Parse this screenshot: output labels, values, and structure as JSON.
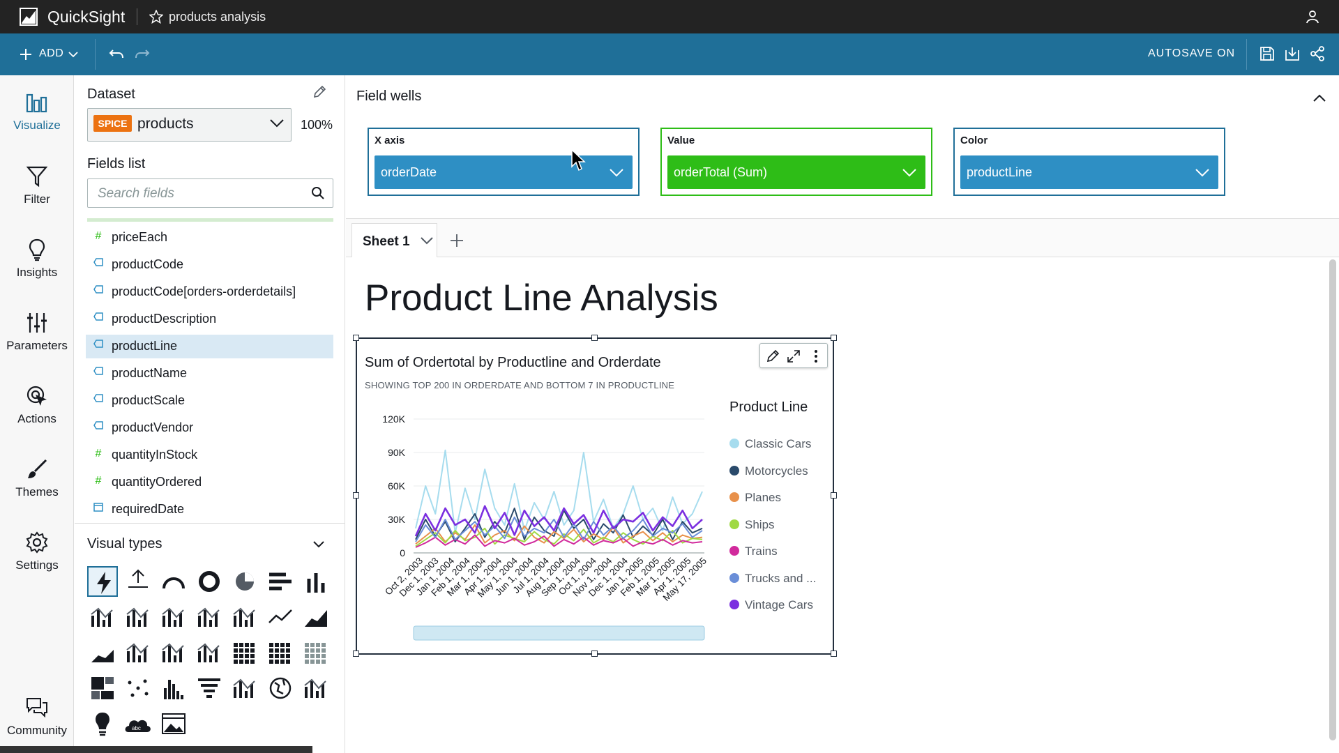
{
  "app": {
    "name": "QuickSight",
    "analysis_name": "products analysis"
  },
  "toolbar": {
    "add_label": "ADD",
    "autosave_label": "AUTOSAVE ON"
  },
  "nav": [
    {
      "label": "Visualize",
      "icon": "visualize-icon",
      "active": true
    },
    {
      "label": "Filter",
      "icon": "filter-icon"
    },
    {
      "label": "Insights",
      "icon": "lightbulb-icon"
    },
    {
      "label": "Parameters",
      "icon": "sliders-icon"
    },
    {
      "label": "Actions",
      "icon": "cursor-click-icon"
    },
    {
      "label": "Themes",
      "icon": "brush-icon"
    },
    {
      "label": "Settings",
      "icon": "gear-icon"
    },
    {
      "label": "Community",
      "icon": "chat-icon"
    }
  ],
  "dataset": {
    "title": "Dataset",
    "badge": "SPICE",
    "name": "products",
    "spice_percent": "100%"
  },
  "fields": {
    "title": "Fields list",
    "search_placeholder": "Search fields",
    "items": [
      {
        "label": "priceEach",
        "type": "measure"
      },
      {
        "label": "productCode",
        "type": "dimension"
      },
      {
        "label": "productCode[orders-orderdetails]",
        "type": "dimension"
      },
      {
        "label": "productDescription",
        "type": "dimension"
      },
      {
        "label": "productLine",
        "type": "dimension",
        "selected": true
      },
      {
        "label": "productName",
        "type": "dimension"
      },
      {
        "label": "productScale",
        "type": "dimension"
      },
      {
        "label": "productVendor",
        "type": "dimension"
      },
      {
        "label": "quantityInStock",
        "type": "measure"
      },
      {
        "label": "quantityOrdered",
        "type": "measure"
      },
      {
        "label": "requiredDate",
        "type": "date"
      }
    ]
  },
  "visual_types": {
    "title": "Visual types"
  },
  "field_wells": {
    "title": "Field wells",
    "x_axis": {
      "label": "X axis",
      "value": "orderDate",
      "color": "#2e8fc4"
    },
    "value": {
      "label": "Value",
      "value": "orderTotal (Sum)",
      "color": "#2ebd17"
    },
    "color": {
      "label": "Color",
      "value": "productLine",
      "color": "#2e8fc4"
    }
  },
  "sheet": {
    "tab_label": "Sheet 1"
  },
  "page_title": "Product Line Analysis",
  "visual": {
    "title": "Sum of Ordertotal by Productline and Orderdate",
    "subtitle": "SHOWING TOP 200 IN ORDERDATE AND BOTTOM 7 IN PRODUCTLINE",
    "legend_title": "Product Line"
  },
  "chart_data": {
    "type": "line",
    "title": "Sum of Ordertotal by Productline and Orderdate",
    "subtitle": "SHOWING TOP 200 IN ORDERDATE AND BOTTOM 7 IN PRODUCTLINE",
    "ylim": [
      0,
      120000
    ],
    "y_ticks": [
      0,
      30000,
      60000,
      90000,
      120000
    ],
    "y_tick_labels": [
      "0",
      "30K",
      "60K",
      "90K",
      "120K"
    ],
    "x_tick_labels": [
      "Oct 2, 2003",
      "Dec 1, 2003",
      "Jan 1, 2004",
      "Feb 1, 2004",
      "Mar 1, 2004",
      "Apr 1, 2004",
      "May 1, 2004",
      "Jun 1, 2004",
      "Jul 1, 2004",
      "Aug 1, 2004",
      "Sep 1, 2004",
      "Oct 1, 2004",
      "Nov 1, 2004",
      "Dec 1, 2004",
      "Jan 1, 2005",
      "Feb 1, 2005",
      "Mar 1, 2005",
      "Apr 1, 2005",
      "May 17, 2005"
    ],
    "legend_title": "Product Line",
    "legend_position": "right",
    "series": [
      {
        "name": "Classic Cars",
        "color": "#a6dcee",
        "values": [
          22000,
          60000,
          35000,
          92000,
          18000,
          58000,
          30000,
          75000,
          40000,
          25000,
          62000,
          20000,
          45000,
          30000,
          55000,
          25000,
          38000,
          90000,
          28000,
          48000,
          22000,
          35000,
          60000,
          30000,
          40000,
          20000,
          50000,
          26000,
          35000,
          55000
        ]
      },
      {
        "name": "Motorcycles",
        "color": "#2a4a6b",
        "values": [
          12000,
          30000,
          15000,
          28000,
          10000,
          22000,
          35000,
          14000,
          28000,
          18000,
          40000,
          12000,
          32000,
          20000,
          15000,
          38000,
          22000,
          30000,
          12000,
          26000,
          18000,
          34000,
          14000,
          24000,
          16000,
          30000,
          12000,
          28000,
          18000,
          22000
        ]
      },
      {
        "name": "Planes",
        "color": "#e8914b",
        "values": [
          8000,
          15000,
          22000,
          10000,
          18000,
          12000,
          25000,
          9000,
          16000,
          20000,
          11000,
          24000,
          14000,
          9000,
          19000,
          13000,
          21000,
          10000,
          17000,
          12000,
          23000,
          9000,
          15000,
          19000,
          11000,
          18000,
          10000,
          16000,
          13000,
          14000
        ]
      },
      {
        "name": "Ships",
        "color": "#a0d944",
        "values": [
          6000,
          12000,
          18000,
          9000,
          20000,
          11000,
          14000,
          22000,
          8000,
          16000,
          13000,
          10000,
          19000,
          12000,
          8000,
          17000,
          11000,
          21000,
          9000,
          14000,
          10000,
          18000,
          12000,
          8000,
          15000,
          11000,
          20000,
          9000,
          13000,
          12000
        ]
      },
      {
        "name": "Trains",
        "color": "#d12a9c",
        "values": [
          5000,
          9000,
          14000,
          7000,
          12000,
          8000,
          16000,
          6000,
          11000,
          9000,
          13000,
          7000,
          10000,
          15000,
          6000,
          12000,
          8000,
          14000,
          7000,
          11000,
          9000,
          13000,
          6000,
          10000,
          8000,
          12000,
          7000,
          11000,
          9000,
          10000
        ]
      },
      {
        "name": "Trucks and Buses",
        "color": "#6a8ed8",
        "values": [
          10000,
          25000,
          14000,
          30000,
          12000,
          20000,
          28000,
          16000,
          24000,
          13000,
          32000,
          15000,
          22000,
          18000,
          30000,
          14000,
          26000,
          12000,
          28000,
          16000,
          24000,
          13000,
          20000,
          30000,
          15000,
          22000,
          18000,
          26000,
          14000,
          20000
        ]
      },
      {
        "name": "Vintage Cars",
        "color": "#7b2fe0",
        "values": [
          15000,
          35000,
          20000,
          40000,
          25000,
          30000,
          18000,
          42000,
          22000,
          36000,
          16000,
          38000,
          24000,
          32000,
          20000,
          40000,
          26000,
          34000,
          18000,
          38000,
          22000,
          30000,
          28000,
          36000,
          20000,
          32000,
          24000,
          38000,
          22000,
          30000
        ]
      }
    ]
  },
  "legend_labels": [
    "Classic Cars",
    "Motorcycles",
    "Planes",
    "Ships",
    "Trains",
    "Trucks and ...",
    "Vintage Cars"
  ]
}
